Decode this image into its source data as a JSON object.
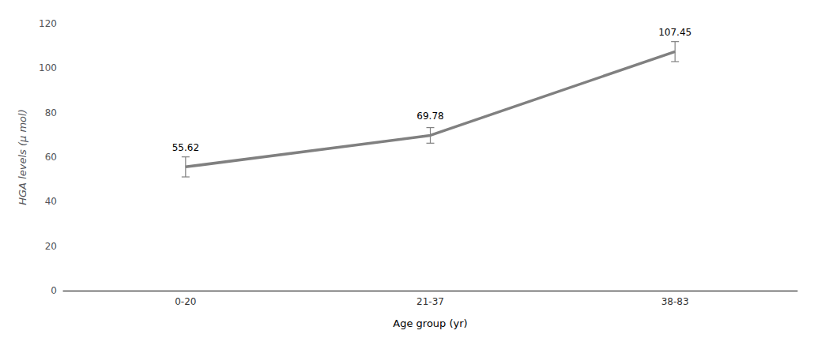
{
  "chart_data": {
    "type": "line",
    "categories": [
      "0-20",
      "21-37",
      "38-83"
    ],
    "values": [
      55.62,
      69.78,
      107.45
    ],
    "errors": [
      4.5,
      3.5,
      4.5
    ],
    "color": "#808080",
    "xlabel": "Age group (yr)",
    "ylabel": "HGA levels (μ mol)",
    "ylim": [
      0,
      120
    ],
    "yticks": [
      0,
      20,
      40,
      60,
      80,
      100,
      120
    ],
    "grid": false,
    "data_labels": true
  }
}
